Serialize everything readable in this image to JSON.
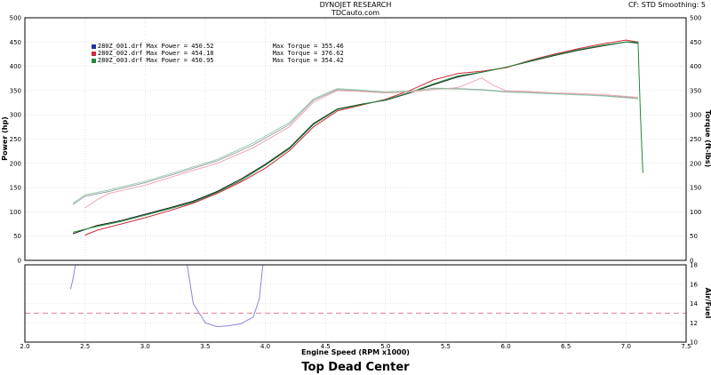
{
  "header": {
    "title": "DYNOJET RESEARCH",
    "subtitle": "TDCauto.com",
    "settings": "CF: STD  Smoothing: 5"
  },
  "footer_title": "Top Dead Center",
  "colors": {
    "run1": "#1a1a1a",
    "run2": "#d0283c",
    "run3": "#1f8a3a",
    "run1_light": "#9a9aa8",
    "run2_light": "#f0a0ac",
    "run3_light": "#8fc8a0",
    "af_curve": "#8a86d6",
    "af_target": "#e07a9c"
  },
  "legend": [
    {
      "file": "280Z_001.drf",
      "max_power": "Max Power = 450.52",
      "max_torque": "Max Torque = 355.46",
      "swatch": "#2233aa"
    },
    {
      "file": "280Z_002.drf",
      "max_power": "Max Power = 454.18",
      "max_torque": "Max Torque = 376.62",
      "swatch": "#d0283c"
    },
    {
      "file": "280Z_003.drf",
      "max_power": "Max Power = 450.95",
      "max_torque": "Max Torque = 354.42",
      "swatch": "#1f8a3a"
    }
  ],
  "chart_data": [
    {
      "type": "line",
      "title": "",
      "xlabel": "Engine Speed (RPM x1000)",
      "ylabel_left": "Power (hp)",
      "ylabel_right": "Torque (ft-lbs)",
      "xlim": [
        2.0,
        7.5
      ],
      "ylim": [
        0,
        500
      ],
      "x_ticks": [
        "2.0",
        "2.5",
        "3.0",
        "3.5",
        "4.0",
        "4.5",
        "5.0",
        "5.5",
        "6.0",
        "6.5",
        "7.0",
        "7.5"
      ],
      "y_ticks": [
        "0",
        "50",
        "100",
        "150",
        "200",
        "250",
        "300",
        "350",
        "400",
        "450",
        "500"
      ],
      "grid": true,
      "series": [
        {
          "group": "power",
          "x": [
            2.4,
            2.6,
            2.8,
            3.0,
            3.2,
            3.4,
            3.6,
            3.8,
            4.0,
            4.2,
            4.4,
            4.6,
            4.8,
            5.0,
            5.2,
            5.4,
            5.6,
            5.8,
            6.0,
            6.2,
            6.4,
            6.6,
            6.8,
            7.0,
            7.1
          ],
          "y": [
            55,
            72,
            82,
            95,
            108,
            122,
            142,
            168,
            198,
            232,
            282,
            312,
            322,
            330,
            345,
            362,
            378,
            388,
            398,
            410,
            422,
            433,
            442,
            450,
            448
          ]
        },
        {
          "group": "power",
          "x": [
            2.5,
            2.6,
            2.8,
            3.0,
            3.2,
            3.4,
            3.6,
            3.8,
            4.0,
            4.2,
            4.4,
            4.6,
            4.8,
            5.0,
            5.2,
            5.4,
            5.6,
            5.8,
            6.0,
            6.2,
            6.4,
            6.6,
            6.8,
            7.0,
            7.1
          ],
          "y": [
            52,
            62,
            75,
            88,
            102,
            118,
            138,
            162,
            190,
            226,
            275,
            308,
            320,
            332,
            350,
            372,
            385,
            390,
            397,
            412,
            425,
            436,
            446,
            454,
            450
          ]
        },
        {
          "group": "power",
          "x": [
            2.4,
            2.6,
            2.8,
            3.0,
            3.2,
            3.4,
            3.6,
            3.8,
            4.0,
            4.2,
            4.4,
            4.6,
            4.8,
            5.0,
            5.2,
            5.4,
            5.6,
            5.8,
            6.0,
            6.2,
            6.4,
            6.6,
            6.8,
            7.0,
            7.1,
            7.12,
            7.14
          ],
          "y": [
            58,
            70,
            80,
            93,
            106,
            120,
            140,
            165,
            196,
            230,
            280,
            311,
            321,
            331,
            346,
            364,
            380,
            388,
            398,
            411,
            423,
            434,
            443,
            450,
            450,
            300,
            180
          ]
        },
        {
          "group": "torque",
          "x": [
            2.4,
            2.5,
            2.7,
            3.0,
            3.3,
            3.6,
            3.9,
            4.2,
            4.4,
            4.6,
            4.8,
            5.0,
            5.2,
            5.4,
            5.6,
            5.8,
            6.0,
            6.2,
            6.4,
            6.6,
            6.8,
            7.0,
            7.1
          ],
          "y": [
            115,
            132,
            142,
            160,
            182,
            205,
            238,
            280,
            330,
            352,
            350,
            346,
            348,
            355,
            354,
            352,
            348,
            346,
            344,
            342,
            340,
            336,
            334
          ]
        },
        {
          "group": "torque",
          "x": [
            2.5,
            2.6,
            2.7,
            3.0,
            3.3,
            3.6,
            3.9,
            4.2,
            4.4,
            4.6,
            4.8,
            5.0,
            5.2,
            5.4,
            5.6,
            5.7,
            5.8,
            5.9,
            6.0,
            6.2,
            6.4,
            6.6,
            6.8,
            7.0,
            7.1
          ],
          "y": [
            108,
            125,
            138,
            155,
            178,
            200,
            232,
            275,
            326,
            350,
            348,
            345,
            347,
            352,
            356,
            366,
            376,
            360,
            350,
            348,
            345,
            344,
            342,
            338,
            336
          ]
        },
        {
          "group": "torque",
          "x": [
            2.4,
            2.5,
            2.7,
            3.0,
            3.3,
            3.6,
            3.9,
            4.2,
            4.4,
            4.6,
            4.8,
            5.0,
            5.2,
            5.4,
            5.6,
            5.8,
            6.0,
            6.2,
            6.4,
            6.6,
            6.8,
            7.0,
            7.1
          ],
          "y": [
            118,
            135,
            145,
            163,
            185,
            208,
            242,
            284,
            333,
            354,
            351,
            347,
            349,
            354,
            353,
            351,
            347,
            345,
            343,
            341,
            339,
            335,
            333
          ]
        }
      ]
    },
    {
      "type": "line",
      "title": "",
      "ylabel_right": "Air/Fuel",
      "xlim": [
        2.0,
        7.5
      ],
      "ylim": [
        10,
        18
      ],
      "y_ticks": [
        "10",
        "12",
        "14",
        "16",
        "18"
      ],
      "series": [
        {
          "name": "",
          "x": [
            2.38,
            2.4,
            2.42
          ],
          "y": [
            15.5,
            16.5,
            18
          ]
        },
        {
          "name": "",
          "x": [
            3.35,
            3.4,
            3.5,
            3.6,
            3.7,
            3.8,
            3.9,
            3.95,
            3.98
          ],
          "y": [
            18,
            14,
            12,
            11.6,
            11.7,
            11.9,
            12.6,
            14.5,
            18
          ]
        },
        {
          "name": "target",
          "x": [
            2.0,
            7.5
          ],
          "y": [
            13,
            13
          ]
        }
      ]
    }
  ]
}
